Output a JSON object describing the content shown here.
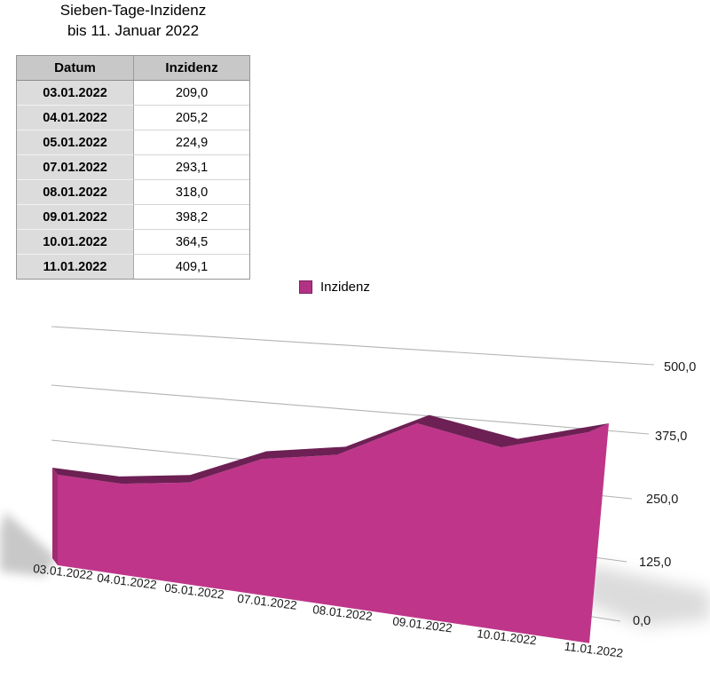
{
  "title": {
    "line1": "Sieben-Tage-Inzidenz",
    "line2": "bis 11. Januar 2022"
  },
  "table": {
    "headers": [
      "Datum",
      "Inzidenz"
    ],
    "rows": [
      [
        "03.01.2022",
        "209,0"
      ],
      [
        "04.01.2022",
        "205,2"
      ],
      [
        "05.01.2022",
        "224,9"
      ],
      [
        "07.01.2022",
        "293,1"
      ],
      [
        "08.01.2022",
        "318,0"
      ],
      [
        "09.01.2022",
        "398,2"
      ],
      [
        "10.01.2022",
        "364,5"
      ],
      [
        "11.01.2022",
        "409,1"
      ]
    ]
  },
  "legend": {
    "label": "Inzidenz",
    "color": "#b23285",
    "border_color": "#7e2260"
  },
  "chart_data": {
    "type": "area",
    "projection": "3d-perspective",
    "title": "Sieben-Tage-Inzidenz bis 11. Januar 2022",
    "categories": [
      "03.01.2022",
      "04.01.2022",
      "05.01.2022",
      "07.01.2022",
      "08.01.2022",
      "09.01.2022",
      "10.01.2022",
      "11.01.2022"
    ],
    "series": [
      {
        "name": "Inzidenz",
        "values": [
          209.0,
          205.2,
          224.9,
          293.1,
          318.0,
          398.2,
          364.5,
          409.1
        ]
      }
    ],
    "y_ticks": [
      {
        "value": 500,
        "label": "500,0"
      },
      {
        "value": 375,
        "label": "375,0"
      },
      {
        "value": 250,
        "label": "250,0"
      },
      {
        "value": 125,
        "label": "125,0"
      },
      {
        "value": 0,
        "label": "0,0"
      }
    ],
    "ylim": [
      0,
      500
    ],
    "grid": true,
    "value_axis_side": "right",
    "legend_position": "top",
    "colors": {
      "area_front": "#bf3589",
      "area_top_ribbon": "#6d2054",
      "area_left_side": "#a02b72",
      "gridline": "#b3b3b3",
      "shadow": "#7d7d7d",
      "text": "#1a1a1a"
    }
  }
}
